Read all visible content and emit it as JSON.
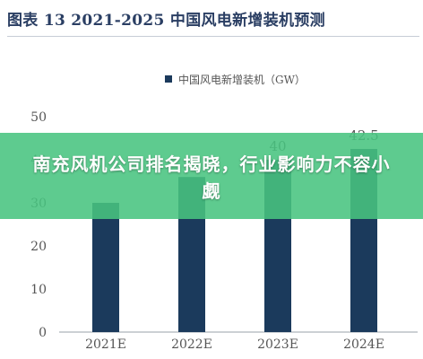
{
  "figure": {
    "title": "图表  13    2021-2025 中国风电新增装机预测"
  },
  "overlay": {
    "headline": "南充风机公司排名揭晓，行业影响力不容小觑"
  },
  "colors": {
    "bar": "#1b3a5c",
    "title": "#2a3e63",
    "axis_text": "#555555",
    "overlay": "#48c480"
  },
  "chart_data": {
    "type": "bar",
    "categories": [
      "2021E",
      "2022E",
      "2023E",
      "2024E"
    ],
    "series": [
      {
        "name": "中国风电新增装机（GW）",
        "values": [
          30,
          36,
          40,
          42.5
        ]
      }
    ],
    "data_labels": [
      "",
      "",
      "40",
      "42.5"
    ],
    "ylim": [
      0,
      50
    ],
    "yticks": [
      0,
      10,
      20,
      30,
      40,
      50
    ],
    "legend_position": "top-center",
    "grid": false
  }
}
